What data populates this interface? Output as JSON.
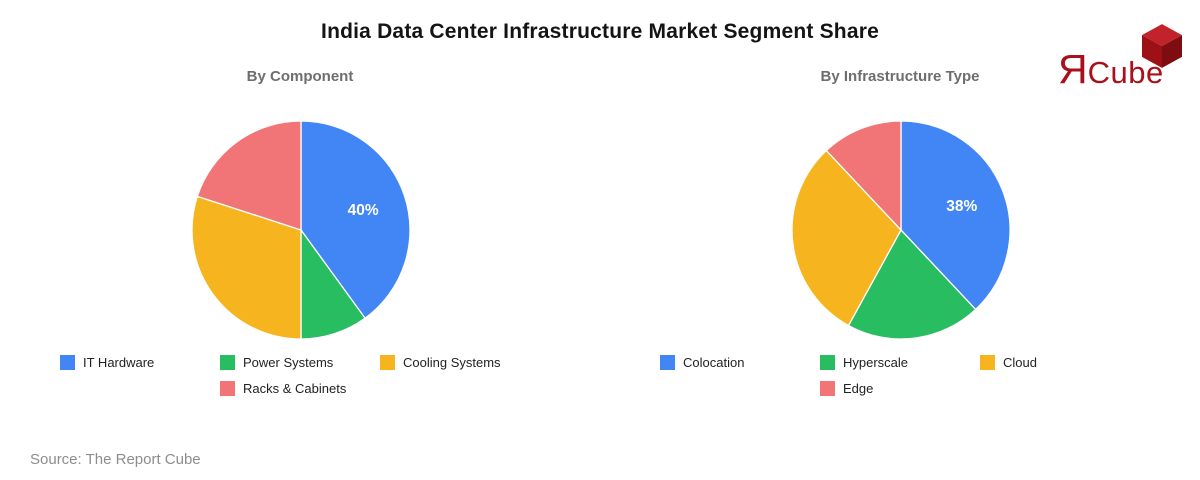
{
  "header": {
    "title": "India Data Center Infrastructure Market Segment Share",
    "logo": {
      "mark": "Я",
      "word": "Cube",
      "text_color": "#A8111B",
      "cube_top_color": "#C2232A",
      "cube_left_color": "#9C1016",
      "cube_right_color": "#7E0D11"
    }
  },
  "footer": {
    "source": "Source: The Report Cube"
  },
  "palette": {
    "blue": "#4285F4",
    "green": "#29BD62",
    "yellow": "#F6B51E",
    "salmon": "#F17577",
    "data_label_text": "#FFFFFF",
    "subtitle_text": "#6E6E6E",
    "source_text": "#8D8D8D"
  },
  "chart_data": [
    {
      "type": "pie",
      "title": "By Component",
      "start_angle": "top",
      "direction": "clockwise",
      "legend_position": "bottom",
      "slices": [
        {
          "label": "IT Hardware",
          "value": 40,
          "color": "#4285F4",
          "data_label": "40%"
        },
        {
          "label": "Power Systems",
          "value": 10,
          "color": "#29BD62",
          "data_label": ""
        },
        {
          "label": "Cooling Systems",
          "value": 30,
          "color": "#F6B51E",
          "data_label": ""
        },
        {
          "label": "Racks & Cabinets",
          "value": 20,
          "color": "#F17577",
          "data_label": ""
        }
      ]
    },
    {
      "type": "pie",
      "title": "By Infrastructure Type",
      "start_angle": "top",
      "direction": "clockwise",
      "legend_position": "bottom",
      "slices": [
        {
          "label": "Colocation",
          "value": 38,
          "color": "#4285F4",
          "data_label": "38%"
        },
        {
          "label": "Hyperscale",
          "value": 20,
          "color": "#29BD62",
          "data_label": ""
        },
        {
          "label": "Cloud",
          "value": 30,
          "color": "#F6B51E",
          "data_label": ""
        },
        {
          "label": "Edge",
          "value": 12,
          "color": "#F17577",
          "data_label": ""
        }
      ]
    }
  ]
}
